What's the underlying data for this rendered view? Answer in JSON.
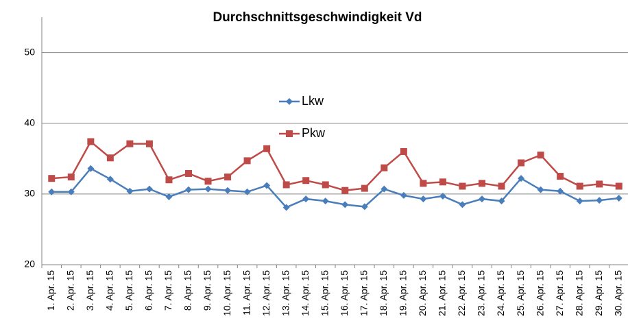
{
  "chart_data": {
    "type": "line",
    "title": "Durchschnittsgeschwindigkeit Vd",
    "categories": [
      "1. Apr. 15",
      "2. Apr. 15",
      "3. Apr. 15",
      "4. Apr. 15",
      "5. Apr. 15",
      "6. Apr. 15",
      "7. Apr. 15",
      "8. Apr. 15",
      "9. Apr. 15",
      "10. Apr. 15",
      "11. Apr. 15",
      "12. Apr. 15",
      "13. Apr. 15",
      "14. Apr. 15",
      "15. Apr. 15",
      "16. Apr. 15",
      "17. Apr. 15",
      "18. Apr. 15",
      "19. Apr. 15",
      "20. Apr. 15",
      "21. Apr. 15",
      "22. Apr. 15",
      "23. Apr. 15",
      "24. Apr. 15",
      "25. Apr. 15",
      "26. Apr. 15",
      "27. Apr. 15",
      "28. Apr. 15",
      "29. Apr. 15",
      "30. Apr. 15"
    ],
    "series": [
      {
        "name": "Lkw",
        "color": "#4a7ebb",
        "marker": "diamond",
        "values": [
          30.3,
          30.3,
          33.6,
          32.1,
          30.4,
          30.7,
          29.6,
          30.6,
          30.7,
          30.5,
          30.3,
          31.2,
          28.1,
          29.3,
          29.0,
          28.5,
          28.2,
          30.7,
          29.8,
          29.3,
          29.7,
          28.5,
          29.3,
          29.0,
          32.2,
          30.6,
          30.4,
          29.0,
          29.1,
          29.4
        ]
      },
      {
        "name": "Pkw",
        "color": "#be4b48",
        "marker": "square",
        "values": [
          32.2,
          32.4,
          37.4,
          35.1,
          37.1,
          37.1,
          32.0,
          32.9,
          31.8,
          32.4,
          34.7,
          36.4,
          31.3,
          31.9,
          31.3,
          30.5,
          30.8,
          33.7,
          36.0,
          31.5,
          31.7,
          31.1,
          31.5,
          31.1,
          34.4,
          35.5,
          32.5,
          31.1,
          31.4,
          31.1
        ]
      }
    ],
    "ylim": [
      20,
      55
    ],
    "yticks": [
      20,
      30,
      40,
      50
    ],
    "grid": true
  }
}
